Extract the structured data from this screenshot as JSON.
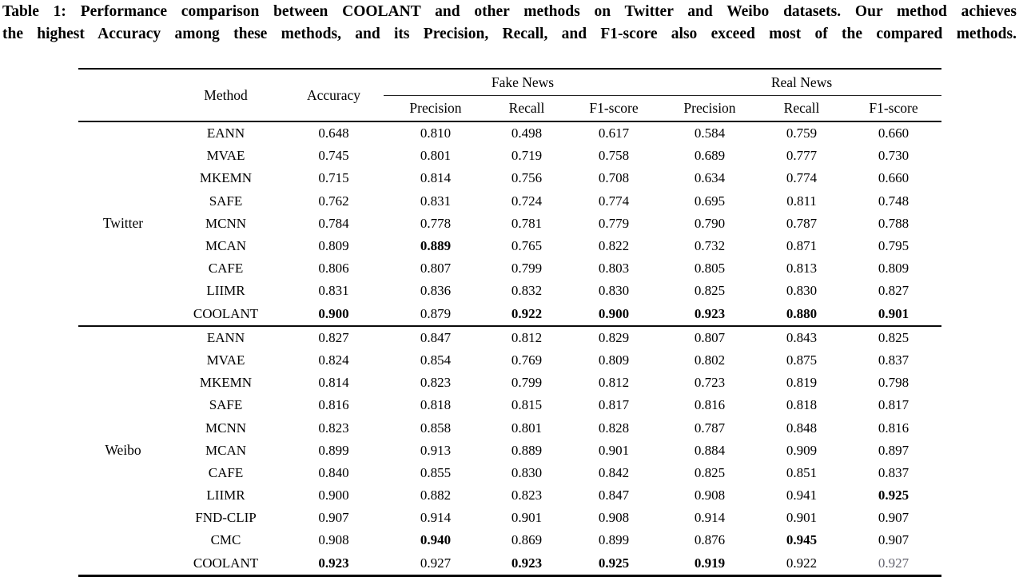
{
  "caption": {
    "line1": "Table 1: Performance comparison between COOLANT and other methods on Twitter and Weibo datasets. Our method achieves",
    "line2": "the highest Accuracy among these methods, and its Precision, Recall, and F1-score also exceed most of the compared methods."
  },
  "header": {
    "method": "Method",
    "accuracy": "Accuracy",
    "groups": [
      {
        "label": "Fake News",
        "columns": [
          "Precision",
          "Recall",
          "F1-score"
        ]
      },
      {
        "label": "Real News",
        "columns": [
          "Precision",
          "Recall",
          "F1-score"
        ]
      }
    ]
  },
  "sections": [
    {
      "dataset": "Twitter",
      "rows": [
        {
          "method": "EANN",
          "cells": [
            {
              "v": "0.648"
            },
            {
              "v": "0.810"
            },
            {
              "v": "0.498"
            },
            {
              "v": "0.617"
            },
            {
              "v": "0.584"
            },
            {
              "v": "0.759"
            },
            {
              "v": "0.660"
            }
          ]
        },
        {
          "method": "MVAE",
          "cells": [
            {
              "v": "0.745"
            },
            {
              "v": "0.801"
            },
            {
              "v": "0.719"
            },
            {
              "v": "0.758"
            },
            {
              "v": "0.689"
            },
            {
              "v": "0.777"
            },
            {
              "v": "0.730"
            }
          ]
        },
        {
          "method": "MKEMN",
          "cells": [
            {
              "v": "0.715"
            },
            {
              "v": "0.814"
            },
            {
              "v": "0.756"
            },
            {
              "v": "0.708"
            },
            {
              "v": "0.634"
            },
            {
              "v": "0.774"
            },
            {
              "v": "0.660"
            }
          ]
        },
        {
          "method": "SAFE",
          "cells": [
            {
              "v": "0.762"
            },
            {
              "v": "0.831"
            },
            {
              "v": "0.724"
            },
            {
              "v": "0.774"
            },
            {
              "v": "0.695"
            },
            {
              "v": "0.811"
            },
            {
              "v": "0.748"
            }
          ]
        },
        {
          "method": "MCNN",
          "cells": [
            {
              "v": "0.784"
            },
            {
              "v": "0.778"
            },
            {
              "v": "0.781"
            },
            {
              "v": "0.779"
            },
            {
              "v": "0.790"
            },
            {
              "v": "0.787"
            },
            {
              "v": "0.788"
            }
          ]
        },
        {
          "method": "MCAN",
          "cells": [
            {
              "v": "0.809"
            },
            {
              "v": "0.889",
              "bold": true
            },
            {
              "v": "0.765"
            },
            {
              "v": "0.822"
            },
            {
              "v": "0.732"
            },
            {
              "v": "0.871"
            },
            {
              "v": "0.795"
            }
          ]
        },
        {
          "method": "CAFE",
          "cells": [
            {
              "v": "0.806"
            },
            {
              "v": "0.807"
            },
            {
              "v": "0.799"
            },
            {
              "v": "0.803"
            },
            {
              "v": "0.805"
            },
            {
              "v": "0.813"
            },
            {
              "v": "0.809"
            }
          ]
        },
        {
          "method": "LIIMR",
          "cells": [
            {
              "v": "0.831"
            },
            {
              "v": "0.836"
            },
            {
              "v": "0.832"
            },
            {
              "v": "0.830"
            },
            {
              "v": "0.825"
            },
            {
              "v": "0.830"
            },
            {
              "v": "0.827"
            }
          ]
        },
        {
          "method": "COOLANT",
          "cells": [
            {
              "v": "0.900",
              "bold": true
            },
            {
              "v": "0.879"
            },
            {
              "v": "0.922",
              "bold": true
            },
            {
              "v": "0.900",
              "bold": true
            },
            {
              "v": "0.923",
              "bold": true
            },
            {
              "v": "0.880",
              "bold": true
            },
            {
              "v": "0.901",
              "bold": true
            }
          ]
        }
      ]
    },
    {
      "dataset": "Weibo",
      "rows": [
        {
          "method": "EANN",
          "cells": [
            {
              "v": "0.827"
            },
            {
              "v": "0.847"
            },
            {
              "v": "0.812"
            },
            {
              "v": "0.829"
            },
            {
              "v": "0.807"
            },
            {
              "v": "0.843"
            },
            {
              "v": "0.825"
            }
          ]
        },
        {
          "method": "MVAE",
          "cells": [
            {
              "v": "0.824"
            },
            {
              "v": "0.854"
            },
            {
              "v": "0.769"
            },
            {
              "v": "0.809"
            },
            {
              "v": "0.802"
            },
            {
              "v": "0.875"
            },
            {
              "v": "0.837"
            }
          ]
        },
        {
          "method": "MKEMN",
          "cells": [
            {
              "v": "0.814"
            },
            {
              "v": "0.823"
            },
            {
              "v": "0.799"
            },
            {
              "v": "0.812"
            },
            {
              "v": "0.723"
            },
            {
              "v": "0.819"
            },
            {
              "v": "0.798"
            }
          ]
        },
        {
          "method": "SAFE",
          "cells": [
            {
              "v": "0.816"
            },
            {
              "v": "0.818"
            },
            {
              "v": "0.815"
            },
            {
              "v": "0.817"
            },
            {
              "v": "0.816"
            },
            {
              "v": "0.818"
            },
            {
              "v": "0.817"
            }
          ]
        },
        {
          "method": "MCNN",
          "cells": [
            {
              "v": "0.823"
            },
            {
              "v": "0.858"
            },
            {
              "v": "0.801"
            },
            {
              "v": "0.828"
            },
            {
              "v": "0.787"
            },
            {
              "v": "0.848"
            },
            {
              "v": "0.816"
            }
          ]
        },
        {
          "method": "MCAN",
          "cells": [
            {
              "v": "0.899"
            },
            {
              "v": "0.913"
            },
            {
              "v": "0.889"
            },
            {
              "v": "0.901"
            },
            {
              "v": "0.884"
            },
            {
              "v": "0.909"
            },
            {
              "v": "0.897"
            }
          ]
        },
        {
          "method": "CAFE",
          "cells": [
            {
              "v": "0.840"
            },
            {
              "v": "0.855"
            },
            {
              "v": "0.830"
            },
            {
              "v": "0.842"
            },
            {
              "v": "0.825"
            },
            {
              "v": "0.851"
            },
            {
              "v": "0.837"
            }
          ]
        },
        {
          "method": "LIIMR",
          "cells": [
            {
              "v": "0.900"
            },
            {
              "v": "0.882"
            },
            {
              "v": "0.823"
            },
            {
              "v": "0.847"
            },
            {
              "v": "0.908"
            },
            {
              "v": "0.941"
            },
            {
              "v": "0.925",
              "bold": true
            }
          ]
        },
        {
          "method": "FND-CLIP",
          "cells": [
            {
              "v": "0.907"
            },
            {
              "v": "0.914"
            },
            {
              "v": "0.901"
            },
            {
              "v": "0.908"
            },
            {
              "v": "0.914"
            },
            {
              "v": "0.901"
            },
            {
              "v": "0.907"
            }
          ]
        },
        {
          "method": "CMC",
          "cells": [
            {
              "v": "0.908"
            },
            {
              "v": "0.940",
              "bold": true
            },
            {
              "v": "0.869"
            },
            {
              "v": "0.899"
            },
            {
              "v": "0.876"
            },
            {
              "v": "0.945",
              "bold": true
            },
            {
              "v": "0.907"
            }
          ]
        },
        {
          "method": "COOLANT",
          "cells": [
            {
              "v": "0.923",
              "bold": true
            },
            {
              "v": "0.927"
            },
            {
              "v": "0.923",
              "bold": true
            },
            {
              "v": "0.925",
              "bold": true
            },
            {
              "v": "0.919",
              "bold": true
            },
            {
              "v": "0.922"
            },
            {
              "v": "0.927",
              "faded": true
            }
          ]
        }
      ]
    }
  ]
}
